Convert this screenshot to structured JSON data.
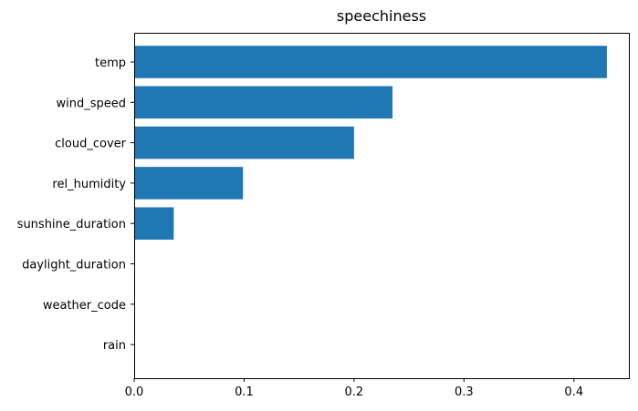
{
  "chart_data": {
    "type": "bar",
    "orientation": "horizontal",
    "title": "speechiness",
    "xlabel": "",
    "ylabel": "",
    "categories": [
      "temp",
      "wind_speed",
      "cloud_cover",
      "rel_humidity",
      "sunshine_duration",
      "daylight_duration",
      "weather_code",
      "rain"
    ],
    "values": [
      0.43,
      0.235,
      0.2,
      0.099,
      0.036,
      0.0,
      0.0,
      0.0
    ],
    "xlim": [
      0,
      0.45
    ],
    "xticks": [
      0.0,
      0.1,
      0.2,
      0.3,
      0.4
    ],
    "xtick_labels": [
      "0.0",
      "0.1",
      "0.2",
      "0.3",
      "0.4"
    ],
    "bar_color": "#1f77b4",
    "grid": false,
    "legend": false
  }
}
